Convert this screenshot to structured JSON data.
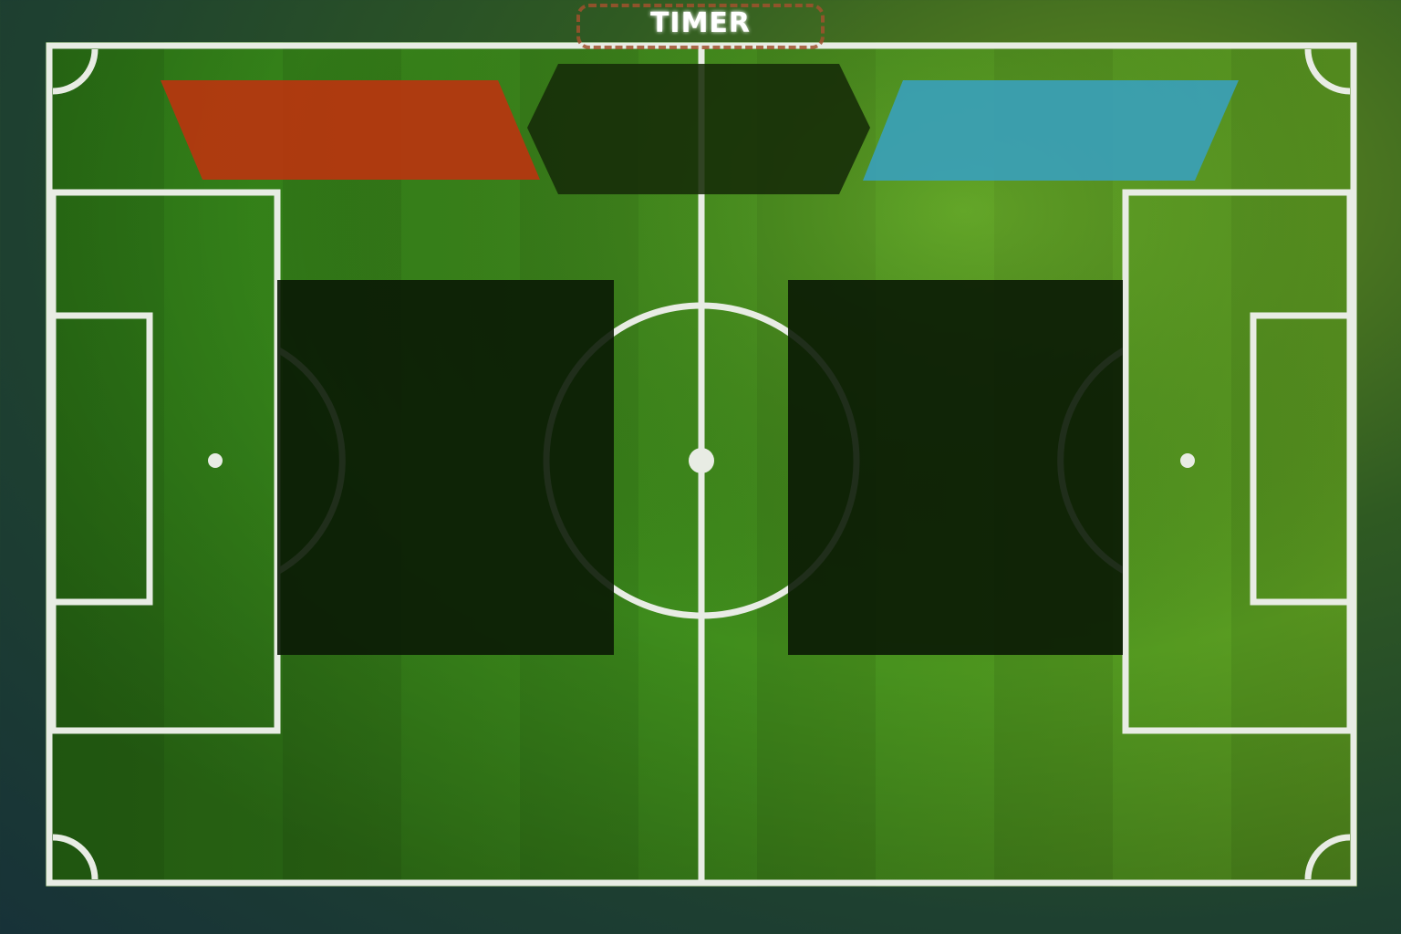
{
  "timer": {
    "label": "TIMER"
  },
  "colors": {
    "grass_light": "#5d9f24",
    "grass_dark": "#2f7a18",
    "line": "#e8ece4",
    "home_team": "#b8350f",
    "away_team": "#3a9fb8",
    "panel": "#0a1a04",
    "timer_border": "#a0522d"
  },
  "panels": {
    "home_score_panel": {
      "team": "home",
      "content": ""
    },
    "away_score_panel": {
      "team": "away",
      "content": ""
    },
    "center_info_panel": {
      "content": ""
    },
    "left_overlay": {
      "content": ""
    },
    "right_overlay": {
      "content": ""
    }
  }
}
